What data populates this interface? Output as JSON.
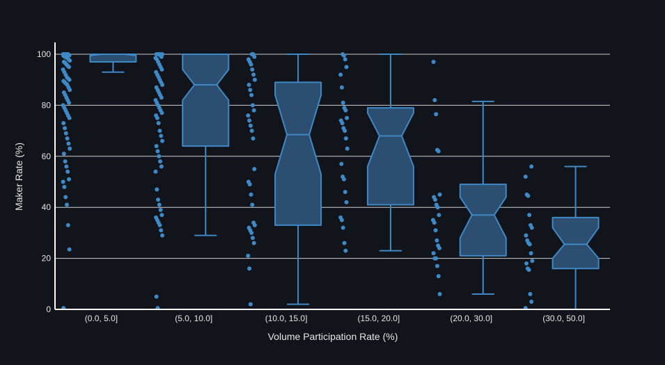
{
  "chart_data": {
    "type": "box",
    "xlabel": "Volume Participation Rate (%)",
    "ylabel": "Maker Rate (%)",
    "ylim": [
      0,
      100
    ],
    "yticks": [
      0,
      20,
      40,
      60,
      80,
      100
    ],
    "grid": true,
    "colors": {
      "background": "#11141b",
      "box_fill": "#2c4e70",
      "line": "#3f89c6",
      "point": "#3f89c6",
      "grid": "#d0d0d0",
      "axis": "#ffffff",
      "text": "#e6e6e6"
    },
    "categories": [
      "(0.0, 5.0]",
      "(5.0, 10.0]",
      "(10.0, 15.0]",
      "(15.0, 20.0]",
      "(20.0, 30.0]",
      "(30.0, 50.0]"
    ],
    "boxes": [
      {
        "category": "(0.0, 5.0]",
        "whisker_low": 93,
        "q1": 97,
        "median": 100,
        "q3": 100,
        "whisker_high": 100,
        "notch_low": 99.5,
        "notch_high": 100
      },
      {
        "category": "(5.0, 10.0]",
        "whisker_low": 29,
        "q1": 64,
        "median": 88,
        "q3": 100,
        "whisker_high": 100,
        "notch_low": 82,
        "notch_high": 94
      },
      {
        "category": "(10.0, 15.0]",
        "whisker_low": 2,
        "q1": 33,
        "median": 68.5,
        "q3": 89,
        "whisker_high": 100,
        "notch_low": 53,
        "notch_high": 84
      },
      {
        "category": "(15.0, 20.0]",
        "whisker_low": 23,
        "q1": 41,
        "median": 68,
        "q3": 79,
        "whisker_high": 100,
        "notch_low": 56,
        "notch_high": 77
      },
      {
        "category": "(20.0, 30.0]",
        "whisker_low": 6,
        "q1": 21,
        "median": 37,
        "q3": 49,
        "whisker_high": 81.5,
        "notch_low": 28,
        "notch_high": 44
      },
      {
        "category": "(30.0, 50.0]",
        "whisker_low": 0,
        "q1": 16,
        "median": 25.5,
        "q3": 36,
        "whisker_high": 56,
        "notch_low": 20,
        "notch_high": 32
      }
    ],
    "points": [
      [
        100,
        100,
        100,
        100,
        100,
        99.6,
        99.4,
        99,
        98.8,
        98.5,
        98,
        97.5,
        97,
        96.6,
        96,
        95.5,
        95,
        94,
        93,
        92,
        91,
        90.5,
        90,
        89.5,
        89,
        88.5,
        88,
        87,
        86,
        85,
        84,
        83,
        82,
        81,
        80,
        79,
        78,
        77,
        76,
        75,
        73,
        71,
        69,
        67,
        65,
        63,
        61,
        58,
        56,
        54,
        51,
        50,
        48,
        44,
        41,
        33,
        23.5,
        0.5
      ],
      [
        100,
        100,
        100,
        100,
        100,
        99.6,
        99,
        98.5,
        98,
        97,
        96,
        95,
        94,
        93,
        92,
        91,
        90,
        89,
        88,
        87,
        86,
        85,
        84,
        83,
        82,
        81,
        80,
        79,
        78,
        77,
        76,
        75,
        73,
        70,
        68,
        66,
        64,
        62,
        60,
        58,
        56,
        54,
        47,
        43,
        41,
        39,
        37,
        36,
        35,
        34,
        33,
        31,
        29,
        5,
        0.5
      ],
      [
        100,
        100,
        99,
        98,
        97,
        96,
        94,
        92,
        90,
        88,
        86,
        84,
        80,
        78,
        76,
        74,
        72,
        70,
        67,
        55,
        50,
        49,
        45,
        41,
        34,
        33,
        32,
        31,
        30,
        28,
        26,
        21,
        16,
        2
      ],
      [
        100,
        99.5,
        98,
        95,
        92,
        87,
        81,
        79,
        78,
        75,
        74,
        73,
        71,
        70,
        67,
        63,
        57,
        52,
        51,
        46,
        42,
        36,
        35,
        32,
        26,
        23
      ],
      [
        97,
        82,
        76.5,
        62.5,
        62,
        45,
        44,
        43,
        41,
        40,
        37,
        35,
        34,
        31,
        27,
        25,
        24,
        22,
        20,
        20,
        17,
        13,
        6
      ],
      [
        56,
        52,
        45,
        44.5,
        37,
        33,
        32,
        29,
        27,
        26,
        25.5,
        22,
        19,
        18,
        16,
        15.5,
        6,
        3,
        0.5
      ]
    ]
  }
}
